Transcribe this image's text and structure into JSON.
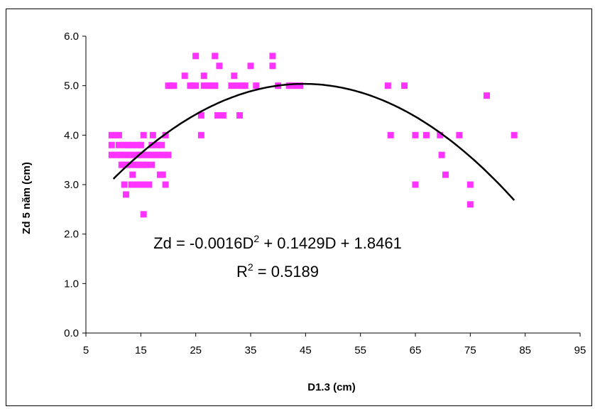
{
  "chart_data": {
    "type": "scatter",
    "title": "",
    "xlabel": "D1.3 (cm)",
    "ylabel": "Zd 5 năm (cm)",
    "xlim": [
      5,
      95
    ],
    "ylim": [
      0,
      6
    ],
    "x_ticks": [
      "5",
      "15",
      "25",
      "35",
      "45",
      "55",
      "65",
      "75",
      "85",
      "95"
    ],
    "y_ticks": [
      "0.0",
      "1.0",
      "2.0",
      "3.0",
      "4.0",
      "5.0",
      "6.0"
    ],
    "grid": false,
    "legend": "none",
    "marker_color": "#FF33FF",
    "trend_color": "#000000",
    "series": [
      {
        "points": [
          [
            9.7,
            4.0
          ],
          [
            9.7,
            3.8
          ],
          [
            9.7,
            3.6
          ],
          [
            10.5,
            4.0
          ],
          [
            10.5,
            3.6
          ],
          [
            11,
            4.0
          ],
          [
            11,
            3.8
          ],
          [
            11,
            3.6
          ],
          [
            11.5,
            3.6
          ],
          [
            11.5,
            3.4
          ],
          [
            12,
            3.8
          ],
          [
            12,
            3.6
          ],
          [
            12,
            3.4
          ],
          [
            12,
            3.0
          ],
          [
            12.3,
            2.8
          ],
          [
            12.5,
            3.6
          ],
          [
            12.7,
            3.8
          ],
          [
            13,
            3.6
          ],
          [
            13,
            3.4
          ],
          [
            13.3,
            3.0
          ],
          [
            13.5,
            3.8
          ],
          [
            13.5,
            3.2
          ],
          [
            13.8,
            3.6
          ],
          [
            14,
            3.4
          ],
          [
            14,
            3.0
          ],
          [
            14.3,
            3.8
          ],
          [
            14.5,
            3.6
          ],
          [
            14.5,
            3.4
          ],
          [
            15,
            3.8
          ],
          [
            15,
            3.6
          ],
          [
            15,
            3.0
          ],
          [
            15.3,
            3.4
          ],
          [
            15.5,
            2.4
          ],
          [
            15.5,
            4.0
          ],
          [
            15.8,
            3.6
          ],
          [
            16,
            3.4
          ],
          [
            16,
            3.0
          ],
          [
            16.3,
            3.6
          ],
          [
            16.5,
            3.0
          ],
          [
            16.8,
            3.6
          ],
          [
            17,
            3.4
          ],
          [
            17,
            3.8
          ],
          [
            17.2,
            4.0
          ],
          [
            17.5,
            3.6
          ],
          [
            18,
            3.6
          ],
          [
            18,
            3.8
          ],
          [
            18.3,
            3.6
          ],
          [
            18.5,
            3.2
          ],
          [
            18.8,
            3.8
          ],
          [
            19,
            3.6
          ],
          [
            19,
            3.2
          ],
          [
            19.5,
            3.6
          ],
          [
            19.5,
            4.0
          ],
          [
            19.5,
            3.0
          ],
          [
            20,
            3.6
          ],
          [
            20,
            5.0
          ],
          [
            20.5,
            5.0
          ],
          [
            21,
            5.0
          ],
          [
            23,
            5.2
          ],
          [
            24,
            5.0
          ],
          [
            24.5,
            5.0
          ],
          [
            25,
            5.6
          ],
          [
            25,
            5.0
          ],
          [
            26,
            4.4
          ],
          [
            26,
            4.0
          ],
          [
            26.5,
            5.2
          ],
          [
            26.5,
            5.0
          ],
          [
            27.3,
            5.0
          ],
          [
            28,
            5.0
          ],
          [
            28.5,
            5.6
          ],
          [
            28.5,
            5.0
          ],
          [
            29,
            4.4
          ],
          [
            29.3,
            5.4
          ],
          [
            30,
            4.4
          ],
          [
            31.5,
            5.0
          ],
          [
            32,
            5.2
          ],
          [
            32.5,
            5.0
          ],
          [
            33,
            4.4
          ],
          [
            33.5,
            5.0
          ],
          [
            34,
            5.0
          ],
          [
            35,
            5.4
          ],
          [
            36,
            5.0
          ],
          [
            39,
            5.6
          ],
          [
            39,
            5.4
          ],
          [
            40,
            5.0
          ],
          [
            42,
            5.0
          ],
          [
            43,
            5.0
          ],
          [
            44,
            5.0
          ],
          [
            60,
            5.0
          ],
          [
            60.5,
            4.0
          ],
          [
            63,
            5.0
          ],
          [
            65,
            4.0
          ],
          [
            65,
            3.0
          ],
          [
            67,
            4.0
          ],
          [
            69.5,
            4.0
          ],
          [
            69.8,
            3.6
          ],
          [
            70.5,
            3.2
          ],
          [
            73,
            4.0
          ],
          [
            75,
            3.0
          ],
          [
            75,
            2.6
          ],
          [
            78,
            4.8
          ],
          [
            83,
            4.0
          ]
        ]
      }
    ],
    "trendline": {
      "type": "polynomial",
      "coefficients": [
        -0.0016,
        0.1429,
        1.8461
      ],
      "x_range": [
        10,
        83
      ],
      "equation_label": "Zd = -0.0016D",
      "equation_label_sup": "2",
      "equation_label_tail": " + 0.1429D + 1.8461",
      "r2_label": "R",
      "r2_label_sup": "2",
      "r2_label_tail": " = 0.5189"
    }
  }
}
